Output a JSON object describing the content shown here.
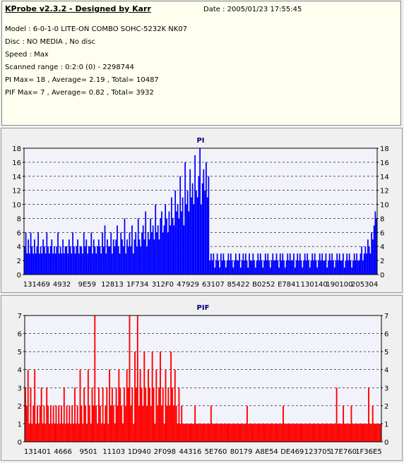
{
  "info": {
    "title": "KProbe v2.3.2 - Designed by Karr",
    "date": "Date : 2005/01/23 17:55:45",
    "lines": [
      "Model : 6-0-1-0 LITE-ON COMBO SOHC-5232K NK07",
      "Disc : NO MEDIA , No disc",
      "Speed : Max",
      "Scanned range : 0:2:0 (0) - 2298744",
      "PI Max= 18 , Average= 2.19 , Total= 10487",
      "PIF Max= 7 , Average= 0.82 , Total= 3932"
    ]
  },
  "chart_data": [
    {
      "type": "bar",
      "title": "PI",
      "color": "#0000ff",
      "ylim": [
        0,
        18
      ],
      "yticks": [
        0,
        2,
        4,
        6,
        8,
        10,
        12,
        14,
        16,
        18
      ],
      "xtick_labels": [
        "131469",
        "4932",
        "9E59",
        "12813",
        "1F734",
        "312F0",
        "47929",
        "63107",
        "85422",
        "B0252",
        "E7841",
        "130140",
        "190100",
        "205304"
      ],
      "grid": true,
      "values": [
        4,
        6,
        3,
        5,
        3,
        6,
        4,
        3,
        5,
        3,
        4,
        6,
        3,
        4,
        3,
        5,
        4,
        3,
        6,
        4,
        3,
        4,
        5,
        3,
        4,
        3,
        4,
        6,
        3,
        4,
        3,
        5,
        3,
        4,
        4,
        3,
        5,
        4,
        3,
        6,
        4,
        3,
        4,
        5,
        3,
        4,
        4,
        3,
        6,
        4,
        5,
        3,
        4,
        4,
        6,
        3,
        5,
        4,
        3,
        4,
        5,
        4,
        3,
        6,
        4,
        7,
        3,
        5,
        4,
        4,
        6,
        3,
        5,
        4,
        5,
        7,
        4,
        3,
        6,
        5,
        4,
        8,
        3,
        5,
        4,
        6,
        4,
        7,
        3,
        5,
        6,
        4,
        8,
        5,
        4,
        6,
        7,
        5,
        9,
        4,
        6,
        5,
        8,
        6,
        7,
        5,
        10,
        6,
        7,
        5,
        8,
        9,
        6,
        7,
        10,
        8,
        6,
        9,
        7,
        11,
        8,
        7,
        12,
        9,
        10,
        8,
        14,
        9,
        11,
        7,
        16,
        10,
        12,
        9,
        15,
        11,
        13,
        10,
        17,
        12,
        11,
        14,
        18,
        10,
        13,
        15,
        12,
        16,
        11,
        14,
        2,
        3,
        2,
        3,
        1,
        2,
        3,
        2,
        1,
        3,
        2,
        3,
        2,
        1,
        2,
        3,
        2,
        3,
        2,
        1,
        2,
        3,
        2,
        2,
        3,
        1,
        2,
        3,
        2,
        3,
        2,
        1,
        3,
        2,
        2,
        3,
        2,
        1,
        2,
        3,
        2,
        3,
        2,
        1,
        2,
        3,
        2,
        3,
        2,
        1,
        2,
        3,
        2,
        2,
        3,
        2,
        1,
        3,
        2,
        3,
        2,
        1,
        2,
        3,
        2,
        3,
        2,
        2,
        3,
        1,
        2,
        3,
        2,
        3,
        2,
        1,
        2,
        3,
        2,
        3,
        2,
        1,
        2,
        3,
        2,
        3,
        2,
        1,
        2,
        3,
        2,
        3,
        2,
        2,
        3,
        1,
        2,
        3,
        2,
        3,
        2,
        1,
        2,
        3,
        2,
        3,
        2,
        2,
        3,
        1,
        2,
        3,
        2,
        3,
        2,
        1,
        2,
        3,
        2,
        3,
        2,
        2,
        3,
        4,
        2,
        3,
        4,
        3,
        5,
        4,
        3,
        6,
        5,
        7,
        9,
        8
      ]
    },
    {
      "type": "bar",
      "title": "PIF",
      "color": "#ff0000",
      "ylim": [
        0,
        7
      ],
      "yticks": [
        0,
        1,
        2,
        3,
        4,
        5,
        6,
        7
      ],
      "xtick_labels": [
        "131401",
        "4666",
        "9501",
        "11103",
        "1D940",
        "2F098",
        "44316",
        "5E760",
        "80179",
        "A8E54",
        "DE469",
        "123705",
        "17E760",
        "1F36E5"
      ],
      "grid": true,
      "values": [
        3,
        2,
        4,
        1,
        3,
        1,
        2,
        4,
        1,
        2,
        1,
        2,
        3,
        1,
        2,
        1,
        3,
        2,
        1,
        2,
        1,
        2,
        1,
        2,
        1,
        2,
        1,
        2,
        1,
        3,
        1,
        2,
        1,
        2,
        1,
        2,
        1,
        3,
        1,
        2,
        1,
        4,
        2,
        1,
        3,
        2,
        1,
        4,
        2,
        1,
        3,
        2,
        7,
        2,
        1,
        3,
        2,
        1,
        3,
        1,
        2,
        3,
        1,
        4,
        2,
        3,
        2,
        1,
        3,
        2,
        4,
        3,
        2,
        1,
        3,
        2,
        4,
        3,
        7,
        2,
        3,
        1,
        5,
        3,
        7,
        2,
        4,
        3,
        2,
        5,
        3,
        2,
        4,
        3,
        2,
        5,
        3,
        1,
        4,
        2,
        3,
        5,
        2,
        3,
        1,
        4,
        2,
        3,
        2,
        5,
        3,
        2,
        4,
        2,
        1,
        3,
        1,
        2,
        1,
        1,
        1,
        1,
        1,
        1,
        1,
        1,
        1,
        2,
        1,
        1,
        1,
        1,
        1,
        1,
        1,
        1,
        1,
        1,
        1,
        2,
        1,
        1,
        1,
        1,
        1,
        1,
        1,
        1,
        1,
        1,
        1,
        1,
        1,
        1,
        1,
        1,
        1,
        1,
        1,
        1,
        1,
        1,
        1,
        1,
        1,
        1,
        2,
        1,
        1,
        1,
        1,
        1,
        1,
        1,
        1,
        1,
        1,
        1,
        1,
        1,
        1,
        1,
        1,
        1,
        1,
        1,
        1,
        1,
        1,
        1,
        1,
        1,
        1,
        2,
        1,
        1,
        1,
        1,
        1,
        1,
        1,
        1,
        1,
        1,
        1,
        1,
        1,
        1,
        1,
        1,
        1,
        1,
        1,
        1,
        1,
        1,
        1,
        1,
        1,
        1,
        1,
        1,
        1,
        1,
        1,
        1,
        1,
        1,
        1,
        1,
        1,
        1,
        1,
        3,
        1,
        1,
        1,
        1,
        2,
        1,
        1,
        1,
        1,
        1,
        2,
        1,
        1,
        1,
        1,
        1,
        1,
        1,
        1,
        1,
        1,
        1,
        1,
        3,
        1,
        1,
        2,
        1,
        1,
        1,
        1,
        1,
        1
      ]
    }
  ]
}
